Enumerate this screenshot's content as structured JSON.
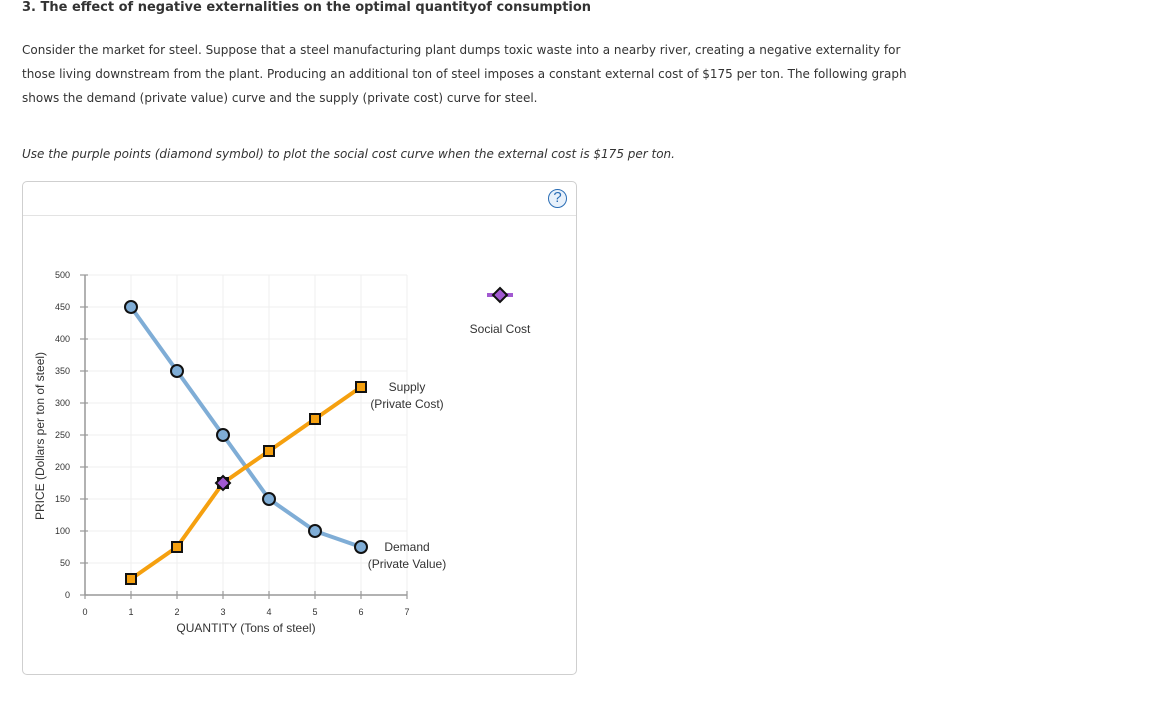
{
  "question": {
    "title": "3. The effect of negative externalities on the optimal quantityof consumption",
    "body_lines": [
      "Consider the market for steel. Suppose that a steel manufacturing plant dumps toxic waste into a nearby river, creating a negative externality for",
      "those living downstream from the plant. Producing an additional ton of steel imposes a constant external cost of $175 per ton. The following graph",
      "shows the demand (private value) curve and the supply (private cost) curve for steel."
    ],
    "instruction": "Use the purple points (diamond symbol) to plot the social cost curve when the external cost is $175 per ton."
  },
  "panel": {
    "help_icon": "question-mark-icon",
    "help_label": "?"
  },
  "colors": {
    "demand": "#7fadd6",
    "supply": "#f5a00f",
    "social_cost": "#a259d1",
    "grid": "#efefef",
    "axis": "#999999",
    "help": "#2a6db5"
  },
  "chart_data": {
    "type": "line",
    "title": "",
    "xlabel": "QUANTITY (Tons of steel)",
    "ylabel": "PRICE (Dollars per ton of steel)",
    "xlim": [
      0,
      7
    ],
    "ylim": [
      0,
      500
    ],
    "x_ticks": [
      "0",
      "1",
      "2",
      "3",
      "4",
      "5",
      "6",
      "7"
    ],
    "y_ticks": [
      "0",
      "50",
      "100",
      "150",
      "200",
      "250",
      "300",
      "350",
      "400",
      "450",
      "500"
    ],
    "grid": true,
    "series": [
      {
        "name": "Demand (Private Value)",
        "label_line1": "Demand",
        "label_line2": "(Private Value)",
        "marker": "circle",
        "x": [
          1,
          2,
          3,
          4,
          5,
          6
        ],
        "y": [
          450,
          350,
          250,
          150,
          100,
          75
        ]
      },
      {
        "name": "Supply (Private Cost)",
        "label_line1": "Supply",
        "label_line2": "(Private Cost)",
        "marker": "square",
        "x": [
          1,
          2,
          3,
          4,
          5,
          6
        ],
        "y": [
          25,
          75,
          175,
          225,
          275,
          325
        ]
      },
      {
        "name": "Social Cost",
        "marker": "diamond",
        "x": [
          3
        ],
        "y": [
          175
        ]
      }
    ],
    "legend": [
      {
        "label": "Social Cost",
        "marker": "diamond",
        "position": "right"
      }
    ]
  }
}
